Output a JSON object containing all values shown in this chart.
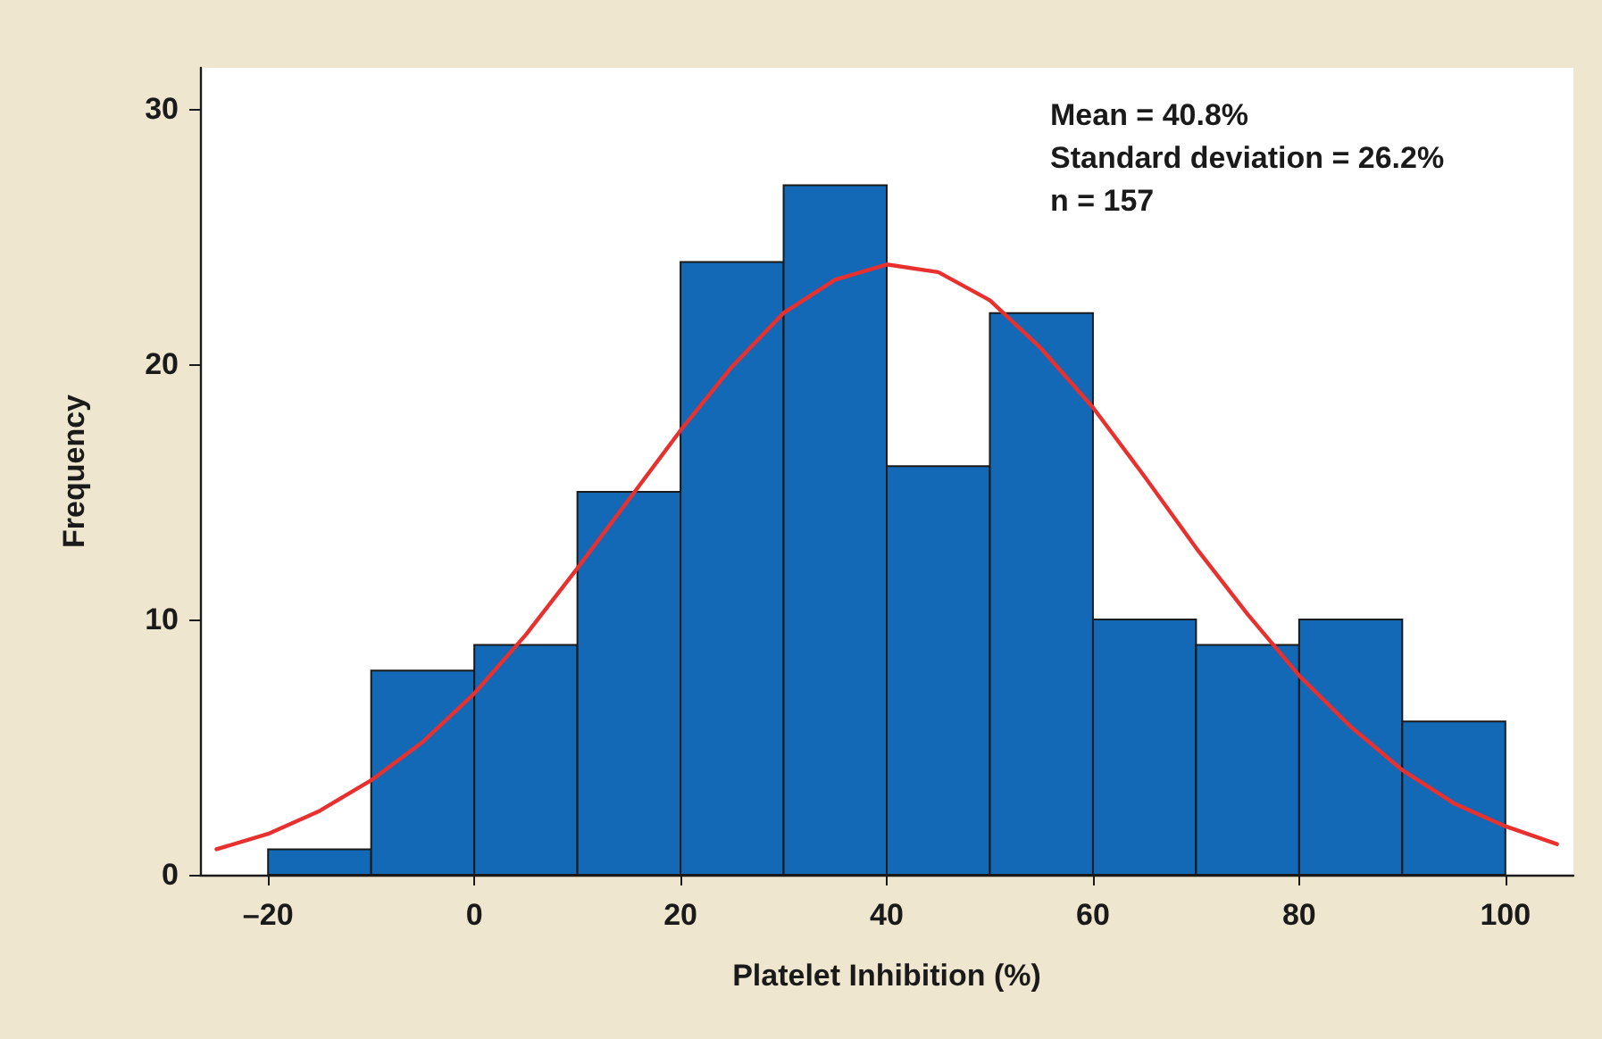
{
  "chart_data": {
    "type": "histogram",
    "xlabel": "Platelet Inhibition (%)",
    "ylabel": "Frequency",
    "color": "#1369b5",
    "bins": [
      -20,
      -10,
      0,
      10,
      20,
      30,
      40,
      50,
      60,
      70,
      80,
      90,
      100
    ],
    "values": [
      1,
      8,
      9,
      15,
      24,
      27,
      16,
      22,
      10,
      9,
      10,
      6
    ],
    "series": [
      {
        "type": "line",
        "color": "#e8312f",
        "x": [
          -25,
          -20,
          -15,
          -10,
          -5,
          0,
          5,
          10,
          15,
          20,
          25,
          30,
          35,
          40,
          45,
          50,
          55,
          60,
          65,
          70,
          75,
          80,
          85,
          90,
          95,
          100,
          105
        ],
        "values": [
          1.0,
          1.6,
          2.5,
          3.7,
          5.2,
          7.1,
          9.4,
          12.0,
          14.7,
          17.4,
          19.9,
          22.0,
          23.3,
          23.9,
          23.6,
          22.5,
          20.6,
          18.3,
          15.6,
          12.8,
          10.2,
          7.8,
          5.8,
          4.1,
          2.8,
          1.9,
          1.2
        ]
      }
    ],
    "xlim": [
      -26.6,
      106.6
    ],
    "xticks": [
      {
        "value": -20,
        "label": "–20"
      },
      0,
      20,
      40,
      60,
      80,
      100
    ],
    "ylim": [
      0,
      31.6
    ],
    "yticks": [
      0,
      10,
      20,
      30
    ],
    "annotations": [
      "Mean = 40.8%",
      "Standard deviation = 26.2%",
      "n = 157"
    ],
    "grid": false,
    "legend": false,
    "marker": "none",
    "line_style": "solid"
  }
}
